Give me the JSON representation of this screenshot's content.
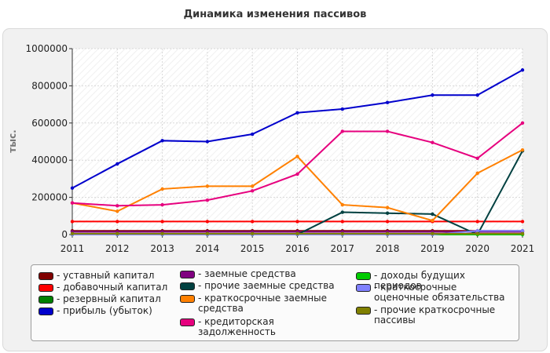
{
  "chart_data": {
    "type": "line",
    "title": "Динамика изменения пассивов",
    "ylabel": "тыс.",
    "xlabel": "",
    "x": [
      "2011",
      "2012",
      "2013",
      "2014",
      "2015",
      "2016",
      "2017",
      "2018",
      "2019",
      "2020",
      "2021"
    ],
    "ylim": [
      0,
      1000000
    ],
    "yticks": [
      "0",
      "200000",
      "400000",
      "600000",
      "800000",
      "1000000"
    ],
    "grid": true,
    "legend_position": "bottom",
    "series": [
      {
        "name": "- уставный капитал",
        "color": "#800000",
        "values": [
          20000,
          20000,
          20000,
          20000,
          20000,
          20000,
          20000,
          20000,
          20000,
          20000,
          20000
        ]
      },
      {
        "name": "- добавочный капитал",
        "color": "#ff0000",
        "values": [
          70000,
          70000,
          70000,
          70000,
          70000,
          70000,
          70000,
          70000,
          70000,
          70000,
          70000
        ]
      },
      {
        "name": "- резервный капитал",
        "color": "#008000",
        "values": [
          2000,
          2000,
          2000,
          2000,
          2000,
          2000,
          2000,
          2000,
          2000,
          2000,
          2000
        ]
      },
      {
        "name": "- прибыль (убыток)",
        "color": "#0000cc",
        "values": [
          250000,
          380000,
          505000,
          500000,
          540000,
          655000,
          675000,
          710000,
          750000,
          750000,
          885000
        ]
      },
      {
        "name": "- заемные средства",
        "color": "#800080",
        "values": [
          15000,
          15000,
          15000,
          15000,
          15000,
          15000,
          15000,
          15000,
          15000,
          15000,
          15000
        ]
      },
      {
        "name": "- прочие заемные средства",
        "color": "#004040",
        "values": [
          0,
          0,
          0,
          0,
          0,
          0,
          120000,
          115000,
          110000,
          0,
          450000
        ]
      },
      {
        "name": "- краткосрочные заемные средства",
        "color": "#ff8000",
        "values": [
          170000,
          125000,
          245000,
          260000,
          260000,
          420000,
          160000,
          145000,
          75000,
          330000,
          455000
        ]
      },
      {
        "name": "- кредиторская задолженность",
        "color": "#e6007e",
        "values": [
          170000,
          155000,
          160000,
          185000,
          235000,
          325000,
          555000,
          555000,
          495000,
          410000,
          600000
        ]
      },
      {
        "name": "- доходы будущих периодов",
        "color": "#00cc00",
        "values": [
          0,
          0,
          0,
          0,
          0,
          0,
          0,
          0,
          0,
          0,
          0
        ]
      },
      {
        "name": "- краткосрочные оценочные обязательства",
        "color": "#8080ff",
        "values": [
          0,
          0,
          0,
          0,
          0,
          0,
          0,
          0,
          0,
          20000,
          20000
        ]
      },
      {
        "name": "- прочие краткосрочные пассивы",
        "color": "#808000",
        "values": [
          5000,
          5000,
          5000,
          5000,
          5000,
          5000,
          5000,
          5000,
          5000,
          5000,
          5000
        ]
      }
    ]
  }
}
